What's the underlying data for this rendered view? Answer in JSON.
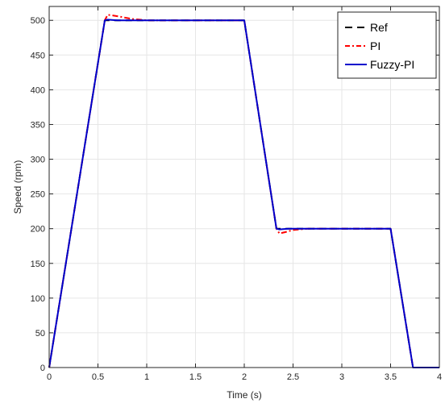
{
  "chart_data": {
    "type": "line",
    "xlabel": "Time (s)",
    "ylabel": "Speed (rpm)",
    "xlim": [
      0,
      4
    ],
    "ylim": [
      0,
      520
    ],
    "xticks": [
      0,
      0.5,
      1,
      1.5,
      2,
      2.5,
      3,
      3.5,
      4
    ],
    "xtick_labels": [
      "0",
      "0.5",
      "1",
      "1.5",
      "2",
      "2.5",
      "3",
      "3.5",
      "4"
    ],
    "yticks": [
      0,
      50,
      100,
      150,
      200,
      250,
      300,
      350,
      400,
      450,
      500
    ],
    "ytick_labels": [
      "0",
      "50",
      "100",
      "150",
      "200",
      "250",
      "300",
      "350",
      "400",
      "450",
      "500"
    ],
    "grid": true,
    "legend_position": "top-right",
    "series": [
      {
        "name": "Ref",
        "color": "#000000",
        "style": "dashed",
        "x": [
          0,
          0.57,
          2.0,
          2.33,
          3.5,
          3.73,
          4.0
        ],
        "y": [
          0,
          500,
          500,
          200,
          200,
          0,
          0
        ]
      },
      {
        "name": "PI",
        "color": "#ff0000",
        "style": "dashdot",
        "x": [
          0,
          0.57,
          0.6,
          0.7,
          0.85,
          1.0,
          2.0,
          2.33,
          2.36,
          2.42,
          2.5,
          2.65,
          3.5,
          3.73,
          4.0
        ],
        "y": [
          0,
          500,
          508,
          506,
          502,
          500,
          500,
          200,
          193,
          195,
          198,
          200,
          200,
          0,
          0
        ]
      },
      {
        "name": "Fuzzy-PI",
        "color": "#0000cc",
        "style": "solid",
        "x": [
          0,
          0.57,
          0.6,
          0.7,
          2.0,
          2.33,
          2.36,
          2.45,
          3.5,
          3.73,
          4.0
        ],
        "y": [
          0,
          500,
          501,
          500,
          500,
          200,
          199,
          200,
          200,
          0,
          0
        ]
      }
    ]
  }
}
